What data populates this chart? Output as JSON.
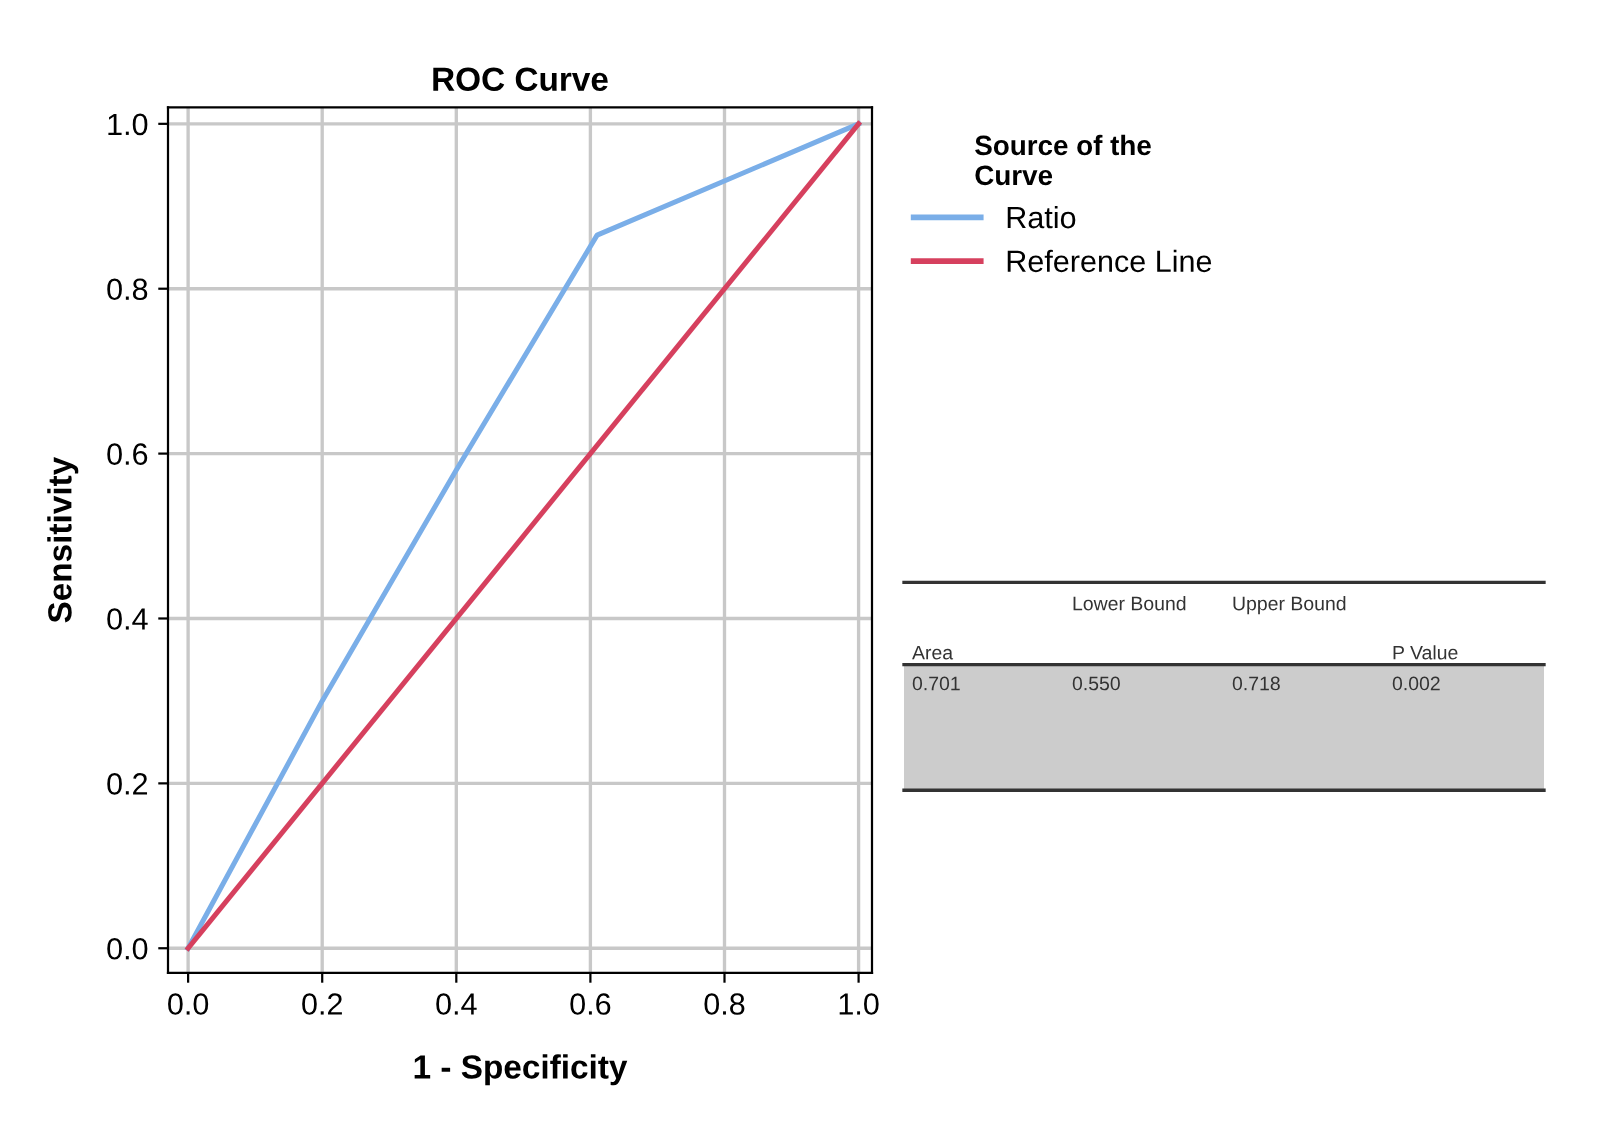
{
  "chart_data": {
    "type": "line",
    "title": "ROC Curve",
    "xlabel": "1 - Specificity",
    "ylabel": "Sensitivity",
    "legend_title": "Source of the\nCurve",
    "series": [
      {
        "name": "Ratio",
        "color": "#7aaee8",
        "x": [
          0,
          0.2,
          0.3,
          0.4,
          0.61,
          1.0
        ],
        "values": [
          0,
          0.3,
          0.44,
          0.58,
          0.865,
          1.0
        ]
      },
      {
        "name": "Reference Line",
        "color": "#d6405e",
        "x": [
          0,
          1.0
        ],
        "values": [
          0,
          1.0
        ]
      }
    ],
    "xlim": [
      -0.03,
      1.02
    ],
    "ylim": [
      -0.03,
      1.02
    ],
    "xticks": [
      {
        "value": 0,
        "label": "0.0"
      },
      0.2,
      0.4,
      0.6,
      0.8,
      {
        "value": 1,
        "label": "1.0"
      }
    ],
    "yticks": [
      {
        "value": 0,
        "label": "0.0"
      },
      0.2,
      0.4,
      0.6,
      0.8,
      {
        "value": 1,
        "label": "1.0"
      }
    ],
    "grid": true,
    "legend": "right",
    "annotations": [
      "Area",
      "Lower Bound",
      "Upper Bound",
      "P Value",
      "0.701",
      "0.550",
      "0.718",
      "0.002"
    ]
  }
}
